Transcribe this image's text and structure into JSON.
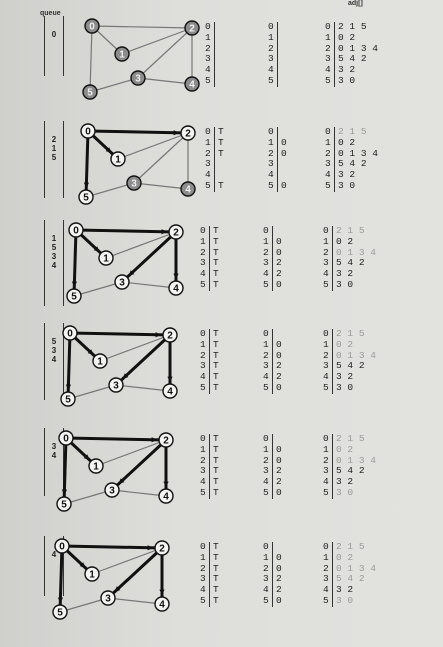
{
  "headers": {
    "queue": "queue",
    "adj": "adj[]"
  },
  "vertices": [
    "0",
    "1",
    "2",
    "3",
    "4",
    "5"
  ],
  "graph_edges": [
    [
      0,
      2
    ],
    [
      0,
      1
    ],
    [
      0,
      5
    ],
    [
      1,
      2
    ],
    [
      2,
      3
    ],
    [
      2,
      4
    ],
    [
      3,
      4
    ],
    [
      3,
      5
    ]
  ],
  "steps": [
    {
      "queue": [
        "0"
      ],
      "marked": [
        "",
        "",
        "",
        "",
        "",
        ""
      ],
      "edgeTo": [
        "",
        "",
        "",
        "",
        "",
        ""
      ],
      "tree_edges": [],
      "gray_vertices": [
        0,
        1,
        2,
        3,
        4,
        5
      ],
      "dim_adj_rows": []
    },
    {
      "queue": [
        "2",
        "1",
        "5"
      ],
      "marked": [
        "T",
        "T",
        "T",
        "",
        "",
        "T"
      ],
      "edgeTo": [
        "",
        "0",
        "0",
        "",
        "",
        "0"
      ],
      "tree_edges": [
        [
          0,
          2
        ],
        [
          0,
          1
        ],
        [
          0,
          5
        ]
      ],
      "gray_vertices": [
        3,
        4
      ],
      "dim_adj_rows": [
        0
      ]
    },
    {
      "queue": [
        "1",
        "5",
        "3",
        "4"
      ],
      "marked": [
        "T",
        "T",
        "T",
        "T",
        "T",
        "T"
      ],
      "edgeTo": [
        "",
        "0",
        "0",
        "2",
        "2",
        "0"
      ],
      "tree_edges": [
        [
          0,
          2
        ],
        [
          0,
          1
        ],
        [
          0,
          5
        ],
        [
          2,
          3
        ],
        [
          2,
          4
        ]
      ],
      "gray_vertices": [],
      "dim_adj_rows": [
        0,
        2
      ]
    },
    {
      "queue": [
        "5",
        "3",
        "4"
      ],
      "marked": [
        "T",
        "T",
        "T",
        "T",
        "T",
        "T"
      ],
      "edgeTo": [
        "",
        "0",
        "0",
        "2",
        "2",
        "0"
      ],
      "tree_edges": [
        [
          0,
          2
        ],
        [
          0,
          1
        ],
        [
          0,
          5
        ],
        [
          2,
          3
        ],
        [
          2,
          4
        ]
      ],
      "gray_vertices": [],
      "dim_adj_rows": [
        0,
        1,
        2
      ]
    },
    {
      "queue": [
        "3",
        "4"
      ],
      "marked": [
        "T",
        "T",
        "T",
        "T",
        "T",
        "T"
      ],
      "edgeTo": [
        "",
        "0",
        "0",
        "2",
        "2",
        "0"
      ],
      "tree_edges": [
        [
          0,
          2
        ],
        [
          0,
          1
        ],
        [
          0,
          5
        ],
        [
          2,
          3
        ],
        [
          2,
          4
        ]
      ],
      "gray_vertices": [],
      "dim_adj_rows": [
        0,
        1,
        2,
        5
      ]
    },
    {
      "queue": [
        "4"
      ],
      "marked": [
        "T",
        "T",
        "T",
        "T",
        "T",
        "T"
      ],
      "edgeTo": [
        "",
        "0",
        "0",
        "2",
        "2",
        "0"
      ],
      "tree_edges": [
        [
          0,
          2
        ],
        [
          0,
          1
        ],
        [
          0,
          5
        ],
        [
          2,
          3
        ],
        [
          2,
          4
        ]
      ],
      "gray_vertices": [],
      "dim_adj_rows": [
        0,
        1,
        2,
        3,
        5
      ]
    }
  ],
  "adj": [
    [
      "2",
      "1",
      "5"
    ],
    [
      "0",
      "2"
    ],
    [
      "0",
      "1",
      "3",
      "4"
    ],
    [
      "5",
      "4",
      "2"
    ],
    [
      "3",
      "2"
    ],
    [
      "3",
      "0"
    ]
  ]
}
